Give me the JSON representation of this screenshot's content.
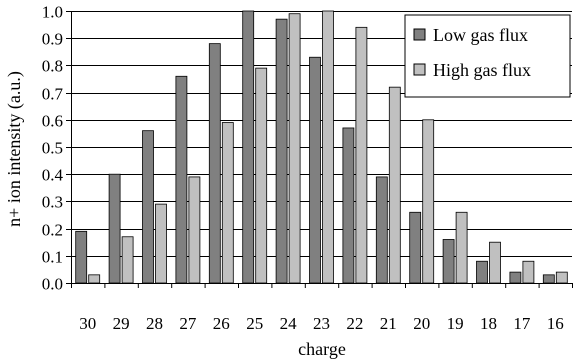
{
  "chart_data": {
    "type": "bar",
    "xlabel": "charge",
    "ylabel": "n+ ion intensity (a.u.)",
    "ylim": [
      0.0,
      1.0
    ],
    "yticks": [
      "0.0",
      "0.1",
      "0.2",
      "0.3",
      "0.4",
      "0.5",
      "0.6",
      "0.7",
      "0.8",
      "0.9",
      "1.0"
    ],
    "grid": true,
    "legend_position": "top-right",
    "categories": [
      "30",
      "29",
      "28",
      "27",
      "26",
      "25",
      "24",
      "23",
      "22",
      "21",
      "20",
      "19",
      "18",
      "17",
      "16"
    ],
    "series": [
      {
        "name": "Low gas flux",
        "color": "#808080",
        "values": [
          0.19,
          0.4,
          0.56,
          0.76,
          0.88,
          1.0,
          0.97,
          0.83,
          0.57,
          0.39,
          0.26,
          0.16,
          0.08,
          0.04,
          0.03
        ]
      },
      {
        "name": "High gas flux",
        "color": "#c0c0c0",
        "values": [
          0.03,
          0.17,
          0.29,
          0.39,
          0.59,
          0.79,
          0.99,
          1.0,
          0.94,
          0.72,
          0.6,
          0.26,
          0.15,
          0.08,
          0.04
        ]
      }
    ]
  }
}
